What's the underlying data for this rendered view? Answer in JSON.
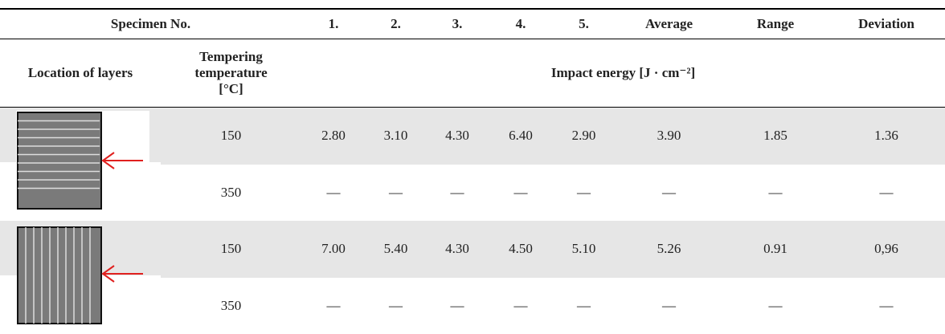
{
  "table": {
    "header": {
      "specimen": "Specimen No.",
      "columns": [
        "1.",
        "2.",
        "3.",
        "4.",
        "5.",
        "Average",
        "Range",
        "Deviation"
      ],
      "location": "Location of layers",
      "tempering": "Tempering temperature [°C]",
      "impact": "Impact energy [J · cm⁻²]"
    },
    "rows": [
      {
        "temperature": "150",
        "values": [
          "2.80",
          "3.10",
          "4.30",
          "6.40",
          "2.90",
          "3.90",
          "1.85",
          "1.36"
        ]
      },
      {
        "temperature": "350",
        "values": [
          "—",
          "—",
          "—",
          "—",
          "—",
          "—",
          "—",
          "—"
        ]
      },
      {
        "temperature": "150",
        "values": [
          "7.00",
          "5.40",
          "4.30",
          "4.50",
          "5.10",
          "5.26",
          "0.91",
          "0,96"
        ]
      },
      {
        "temperature": "350",
        "values": [
          "—",
          "—",
          "—",
          "—",
          "—",
          "—",
          "—",
          "—"
        ]
      }
    ]
  }
}
